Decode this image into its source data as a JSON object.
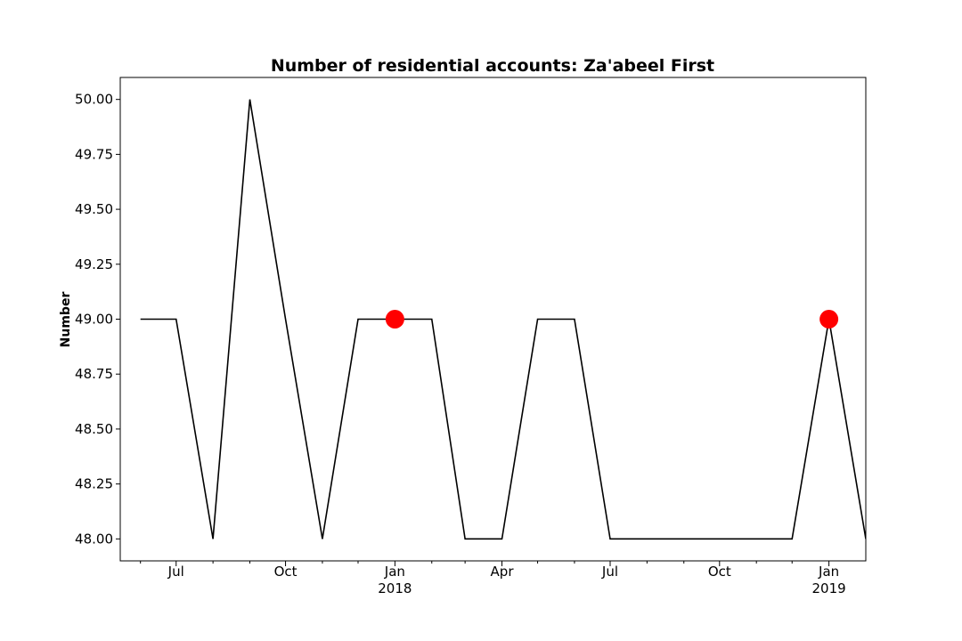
{
  "chart_data": {
    "type": "line",
    "title": "Number of residential accounts: Za'abeel First",
    "xlabel": "",
    "ylabel": "Number",
    "xlim": [
      "2017-05-15",
      "2019-02-01"
    ],
    "ylim": [
      47.9,
      50.1
    ],
    "grid": false,
    "legend": "none",
    "x_ticks": [
      {
        "date": "2017-07-01",
        "label": "Jul",
        "sublabel": ""
      },
      {
        "date": "2017-10-01",
        "label": "Oct",
        "sublabel": ""
      },
      {
        "date": "2018-01-01",
        "label": "Jan",
        "sublabel": "2018"
      },
      {
        "date": "2018-04-01",
        "label": "Apr",
        "sublabel": ""
      },
      {
        "date": "2018-07-01",
        "label": "Jul",
        "sublabel": ""
      },
      {
        "date": "2018-10-01",
        "label": "Oct",
        "sublabel": ""
      },
      {
        "date": "2019-01-01",
        "label": "Jan",
        "sublabel": "2019"
      }
    ],
    "x_minor_ticks": [
      "2017-06-01",
      "2017-08-01",
      "2017-09-01",
      "2017-11-01",
      "2017-12-01",
      "2018-02-01",
      "2018-03-01",
      "2018-05-01",
      "2018-06-01",
      "2018-08-01",
      "2018-09-01",
      "2018-11-01",
      "2018-12-01"
    ],
    "y_ticks": [
      "48.00",
      "48.25",
      "48.50",
      "48.75",
      "49.00",
      "49.25",
      "49.50",
      "49.75",
      "50.00"
    ],
    "series": [
      {
        "color": "#000000",
        "x": [
          "2017-06-01",
          "2017-07-01",
          "2017-08-01",
          "2017-09-01",
          "2017-10-01",
          "2017-11-01",
          "2017-12-01",
          "2018-01-01",
          "2018-02-01",
          "2018-03-01",
          "2018-04-01",
          "2018-05-01",
          "2018-06-01",
          "2018-07-01",
          "2018-08-01",
          "2018-09-01",
          "2018-10-01",
          "2018-11-01",
          "2018-12-01",
          "2019-01-01",
          "2019-02-01"
        ],
        "y": [
          49,
          49,
          48,
          50,
          49,
          48,
          49,
          49,
          49,
          48,
          48,
          49,
          49,
          48,
          48,
          48,
          48,
          48,
          48,
          49,
          48
        ]
      }
    ],
    "highlight_points": {
      "color": "#ff0000",
      "x": [
        "2018-01-01",
        "2019-01-01"
      ],
      "y": [
        49,
        49
      ]
    }
  }
}
